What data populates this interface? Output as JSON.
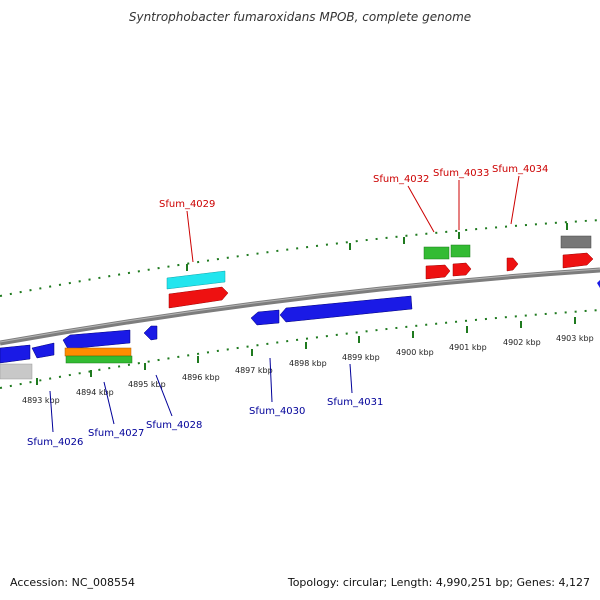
{
  "title": "Syntrophobacter fumaroxidans MPOB, complete genome",
  "footer": {
    "accession": "Accession: NC_008554",
    "summary": "Topology: circular; Length: 4,990,251 bp; Genes: 4,127"
  },
  "colors": {
    "backbone": "#8a8a8a",
    "tick": "#1f7a1f",
    "label_red": "#cc0000",
    "label_blue": "#000099",
    "gene_blue": "#1a1ae6",
    "gene_red": "#ee1111",
    "gene_green": "#33bb33",
    "gene_cyan": "#22e5ee",
    "gene_orange": "#ff8c00",
    "gene_gray": "#777777",
    "gene_lightgray": "#c8c8c8"
  },
  "kbp_labels": [
    "4893 kbp",
    "4894 kbp",
    "4895 kbp",
    "4896 kbp",
    "4897 kbp",
    "4898 kbp",
    "4899 kbp",
    "4900 kbp",
    "4901 kbp",
    "4902 kbp",
    "4903 kbp"
  ],
  "gene_labels_top": [
    "Sfum_4029",
    "Sfum_4032",
    "Sfum_4033",
    "Sfum_4034"
  ],
  "gene_labels_bottom": [
    "Sfum_4026",
    "Sfum_4027",
    "Sfum_4028",
    "Sfum_4030",
    "Sfum_4031"
  ]
}
